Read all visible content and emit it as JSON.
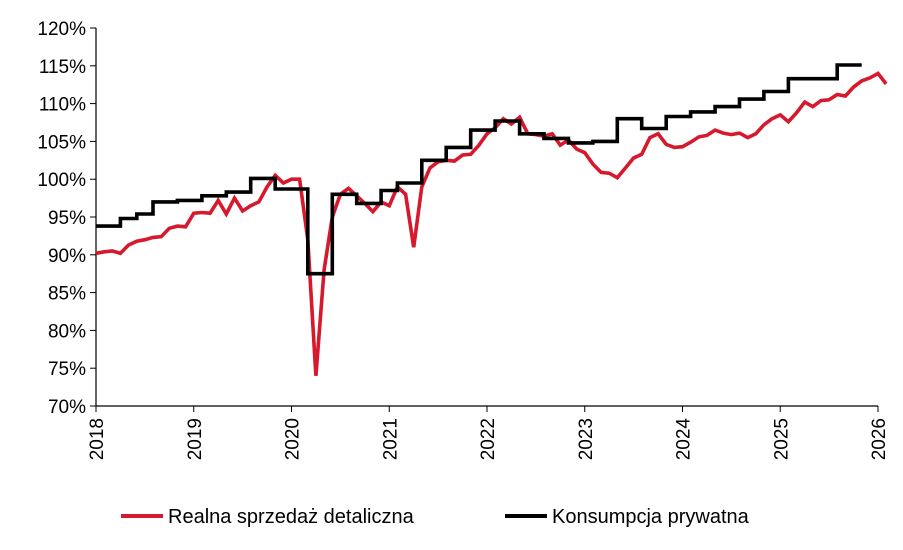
{
  "chart_data": {
    "type": "line",
    "title": "",
    "xlabel": "",
    "ylabel": "",
    "ylim": [
      70,
      120
    ],
    "yticks": [
      "70%",
      "75%",
      "80%",
      "85%",
      "90%",
      "95%",
      "100%",
      "105%",
      "110%",
      "115%",
      "120%"
    ],
    "xlim": [
      2018,
      2026
    ],
    "xticks": [
      "2018",
      "2019",
      "2020",
      "2021",
      "2022",
      "2023",
      "2024",
      "2025",
      "2026"
    ],
    "grid": false,
    "legend_position": "bottom",
    "series": [
      {
        "name": "Realna sprzedaż detaliczna",
        "color": "#d7192d",
        "points": [
          [
            2018.0,
            90.2
          ],
          [
            2018.083,
            90.4
          ],
          [
            2018.167,
            90.5
          ],
          [
            2018.25,
            90.2
          ],
          [
            2018.333,
            91.3
          ],
          [
            2018.417,
            91.8
          ],
          [
            2018.5,
            92.0
          ],
          [
            2018.583,
            92.3
          ],
          [
            2018.667,
            92.4
          ],
          [
            2018.75,
            93.5
          ],
          [
            2018.833,
            93.8
          ],
          [
            2018.917,
            93.7
          ],
          [
            2019.0,
            95.5
          ],
          [
            2019.083,
            95.6
          ],
          [
            2019.167,
            95.5
          ],
          [
            2019.25,
            97.2
          ],
          [
            2019.333,
            95.4
          ],
          [
            2019.417,
            97.5
          ],
          [
            2019.5,
            95.8
          ],
          [
            2019.583,
            96.5
          ],
          [
            2019.667,
            97.0
          ],
          [
            2019.75,
            99.0
          ],
          [
            2019.833,
            100.5
          ],
          [
            2019.917,
            99.5
          ],
          [
            2020.0,
            100.0
          ],
          [
            2020.083,
            100.0
          ],
          [
            2020.167,
            92.0
          ],
          [
            2020.25,
            74.0
          ],
          [
            2020.333,
            88.0
          ],
          [
            2020.417,
            95.0
          ],
          [
            2020.5,
            98.0
          ],
          [
            2020.583,
            98.8
          ],
          [
            2020.667,
            97.8
          ],
          [
            2020.75,
            96.8
          ],
          [
            2020.833,
            95.7
          ],
          [
            2020.917,
            97.0
          ],
          [
            2021.0,
            96.5
          ],
          [
            2021.083,
            99.0
          ],
          [
            2021.167,
            98.0
          ],
          [
            2021.25,
            91.0
          ],
          [
            2021.333,
            99.0
          ],
          [
            2021.417,
            101.5
          ],
          [
            2021.5,
            102.3
          ],
          [
            2021.583,
            102.5
          ],
          [
            2021.667,
            102.4
          ],
          [
            2021.75,
            103.2
          ],
          [
            2021.833,
            103.3
          ],
          [
            2021.917,
            104.5
          ],
          [
            2022.0,
            106.0
          ],
          [
            2022.083,
            106.8
          ],
          [
            2022.167,
            108.0
          ],
          [
            2022.25,
            107.3
          ],
          [
            2022.333,
            108.2
          ],
          [
            2022.417,
            106.0
          ],
          [
            2022.5,
            105.9
          ],
          [
            2022.583,
            105.7
          ],
          [
            2022.667,
            106.0
          ],
          [
            2022.75,
            104.5
          ],
          [
            2022.833,
            105.2
          ],
          [
            2022.917,
            104.0
          ],
          [
            2023.0,
            103.5
          ],
          [
            2023.083,
            102.0
          ],
          [
            2023.167,
            100.9
          ],
          [
            2023.25,
            100.8
          ],
          [
            2023.333,
            100.2
          ],
          [
            2023.417,
            101.5
          ],
          [
            2023.5,
            102.8
          ],
          [
            2023.583,
            103.3
          ],
          [
            2023.667,
            105.5
          ],
          [
            2023.75,
            106.0
          ],
          [
            2023.833,
            104.6
          ],
          [
            2023.917,
            104.2
          ],
          [
            2024.0,
            104.3
          ],
          [
            2024.083,
            104.9
          ],
          [
            2024.167,
            105.6
          ],
          [
            2024.25,
            105.8
          ],
          [
            2024.333,
            106.5
          ],
          [
            2024.417,
            106.1
          ],
          [
            2024.5,
            105.9
          ],
          [
            2024.583,
            106.1
          ],
          [
            2024.667,
            105.5
          ],
          [
            2024.75,
            106.0
          ],
          [
            2024.833,
            107.2
          ],
          [
            2024.917,
            108.0
          ],
          [
            2025.0,
            108.5
          ],
          [
            2025.083,
            107.6
          ],
          [
            2025.167,
            108.8
          ],
          [
            2025.25,
            110.2
          ],
          [
            2025.333,
            109.6
          ],
          [
            2025.417,
            110.4
          ],
          [
            2025.5,
            110.5
          ],
          [
            2025.583,
            111.2
          ],
          [
            2025.667,
            111.0
          ],
          [
            2025.75,
            112.2
          ],
          [
            2025.833,
            113.0
          ],
          [
            2025.917,
            113.4
          ],
          [
            2026.0,
            114.0
          ],
          [
            2026.083,
            112.6
          ]
        ]
      },
      {
        "name": "Konsumpcja prywatna",
        "color": "#000000",
        "points": [
          [
            2018.0,
            93.8
          ],
          [
            2018.25,
            93.8
          ],
          [
            2018.25,
            94.8
          ],
          [
            2018.417,
            94.8
          ],
          [
            2018.417,
            95.4
          ],
          [
            2018.583,
            95.4
          ],
          [
            2018.583,
            97.0
          ],
          [
            2018.833,
            97.0
          ],
          [
            2018.833,
            97.2
          ],
          [
            2019.083,
            97.2
          ],
          [
            2019.083,
            97.8
          ],
          [
            2019.333,
            97.8
          ],
          [
            2019.333,
            98.3
          ],
          [
            2019.583,
            98.3
          ],
          [
            2019.583,
            100.1
          ],
          [
            2019.833,
            100.1
          ],
          [
            2019.833,
            98.7
          ],
          [
            2020.167,
            98.7
          ],
          [
            2020.167,
            87.5
          ],
          [
            2020.417,
            87.5
          ],
          [
            2020.417,
            98.0
          ],
          [
            2020.667,
            98.0
          ],
          [
            2020.667,
            96.8
          ],
          [
            2020.917,
            96.8
          ],
          [
            2020.917,
            98.5
          ],
          [
            2021.083,
            98.5
          ],
          [
            2021.083,
            99.5
          ],
          [
            2021.333,
            99.5
          ],
          [
            2021.333,
            102.5
          ],
          [
            2021.583,
            102.5
          ],
          [
            2021.583,
            104.2
          ],
          [
            2021.833,
            104.2
          ],
          [
            2021.833,
            106.5
          ],
          [
            2022.083,
            106.5
          ],
          [
            2022.083,
            107.7
          ],
          [
            2022.333,
            107.7
          ],
          [
            2022.333,
            106.0
          ],
          [
            2022.583,
            106.0
          ],
          [
            2022.583,
            105.4
          ],
          [
            2022.833,
            105.4
          ],
          [
            2022.833,
            104.8
          ],
          [
            2023.083,
            104.8
          ],
          [
            2023.083,
            105.0
          ],
          [
            2023.333,
            105.0
          ],
          [
            2023.333,
            108.0
          ],
          [
            2023.583,
            108.0
          ],
          [
            2023.583,
            106.7
          ],
          [
            2023.833,
            106.7
          ],
          [
            2023.833,
            108.3
          ],
          [
            2024.083,
            108.3
          ],
          [
            2024.083,
            108.9
          ],
          [
            2024.333,
            108.9
          ],
          [
            2024.333,
            109.6
          ],
          [
            2024.583,
            109.6
          ],
          [
            2024.583,
            110.6
          ],
          [
            2024.833,
            110.6
          ],
          [
            2024.833,
            111.6
          ],
          [
            2025.083,
            111.6
          ],
          [
            2025.083,
            113.3
          ],
          [
            2025.333,
            113.3
          ],
          [
            2025.333,
            113.3
          ],
          [
            2025.583,
            113.3
          ],
          [
            2025.583,
            115.1
          ],
          [
            2025.833,
            115.1
          ]
        ]
      }
    ]
  }
}
